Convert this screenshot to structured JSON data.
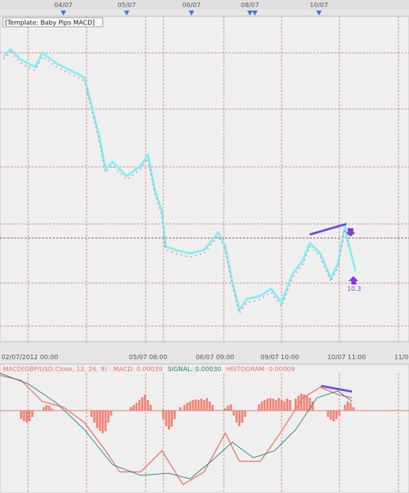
{
  "top_axis": {
    "labels": [
      "04/07",
      "05/07",
      "06/07",
      "08/07",
      "10/07"
    ]
  },
  "price_panel": {
    "template_label": "[Template: Baby Pips MACD]",
    "annotation": "10.3"
  },
  "time_axis": {
    "labels": [
      "02/07/2012 00:00",
      "05/07 08:00",
      "06/07 09:00",
      "09/07 10:00",
      "10/07 11:00",
      "11/0"
    ]
  },
  "macd_panel": {
    "header": "MACD(GBP/USD.Close, 12, 26, 9) -  MACD: 0.00039",
    "signal": "SIGNAL: 0.00030",
    "histogram": "HISTOGRAM: 0.00009"
  }
}
